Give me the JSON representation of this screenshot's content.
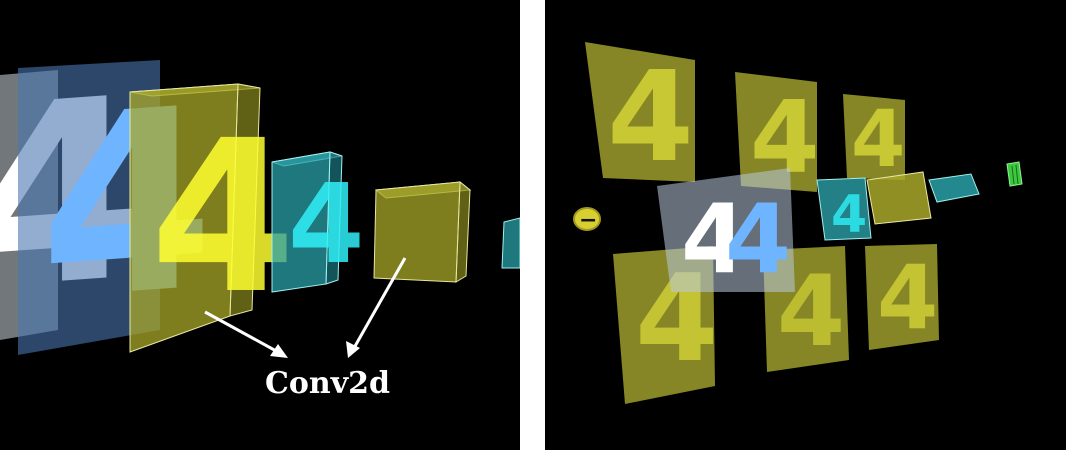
{
  "left_view": {
    "digit": "4",
    "label": "Conv2d"
  },
  "right_view": {
    "digit": "4",
    "toggle_glyph": "−"
  },
  "colors": {
    "background": "#000000",
    "input_white": "#ffffff",
    "input_blue": "#6eb4ff",
    "conv_yellow": "#c8c83a",
    "pool_cyan": "#34c8d0",
    "dense_green": "#3cc83c",
    "arrow": "#ffffff"
  }
}
